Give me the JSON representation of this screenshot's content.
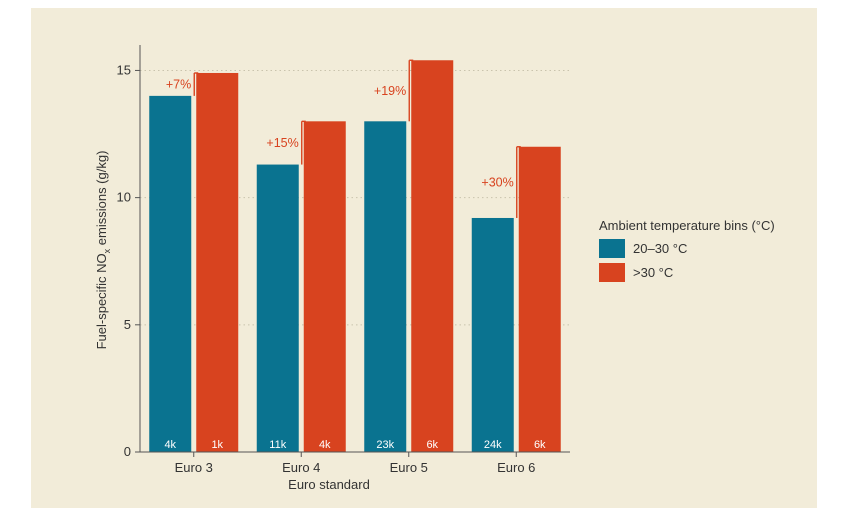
{
  "colors": {
    "background": "#f2ecd9",
    "series_a": "#0a7390",
    "series_b": "#d8431f",
    "annotation": "#d8431f",
    "text": "#333333"
  },
  "chart_data": {
    "type": "bar",
    "title": "",
    "xlabel": "Euro standard",
    "ylabel_prefix": "Fuel-specific NO",
    "ylabel_sub": "x",
    "ylabel_suffix": " emissions (g/kg)",
    "ylim": [
      0,
      16
    ],
    "yticks": [
      0,
      5,
      10,
      15
    ],
    "grid": "dotted horizontal at ticks",
    "categories": [
      "Euro 3",
      "Euro 4",
      "Euro 5",
      "Euro 6"
    ],
    "series": [
      {
        "name": "20–30 °C",
        "values": [
          14.0,
          11.3,
          13.0,
          9.2
        ],
        "counts": [
          "4k",
          "11k",
          "23k",
          "24k"
        ]
      },
      {
        "name": ">30 °C",
        "values": [
          14.9,
          13.0,
          15.4,
          12.0
        ],
        "counts": [
          "1k",
          "4k",
          "6k",
          "6k"
        ]
      }
    ],
    "annotations": [
      "+7%",
      "+15%",
      "+19%",
      "+30%"
    ],
    "legend_title": "Ambient temperature bins (°C)",
    "legend_position": "right"
  }
}
